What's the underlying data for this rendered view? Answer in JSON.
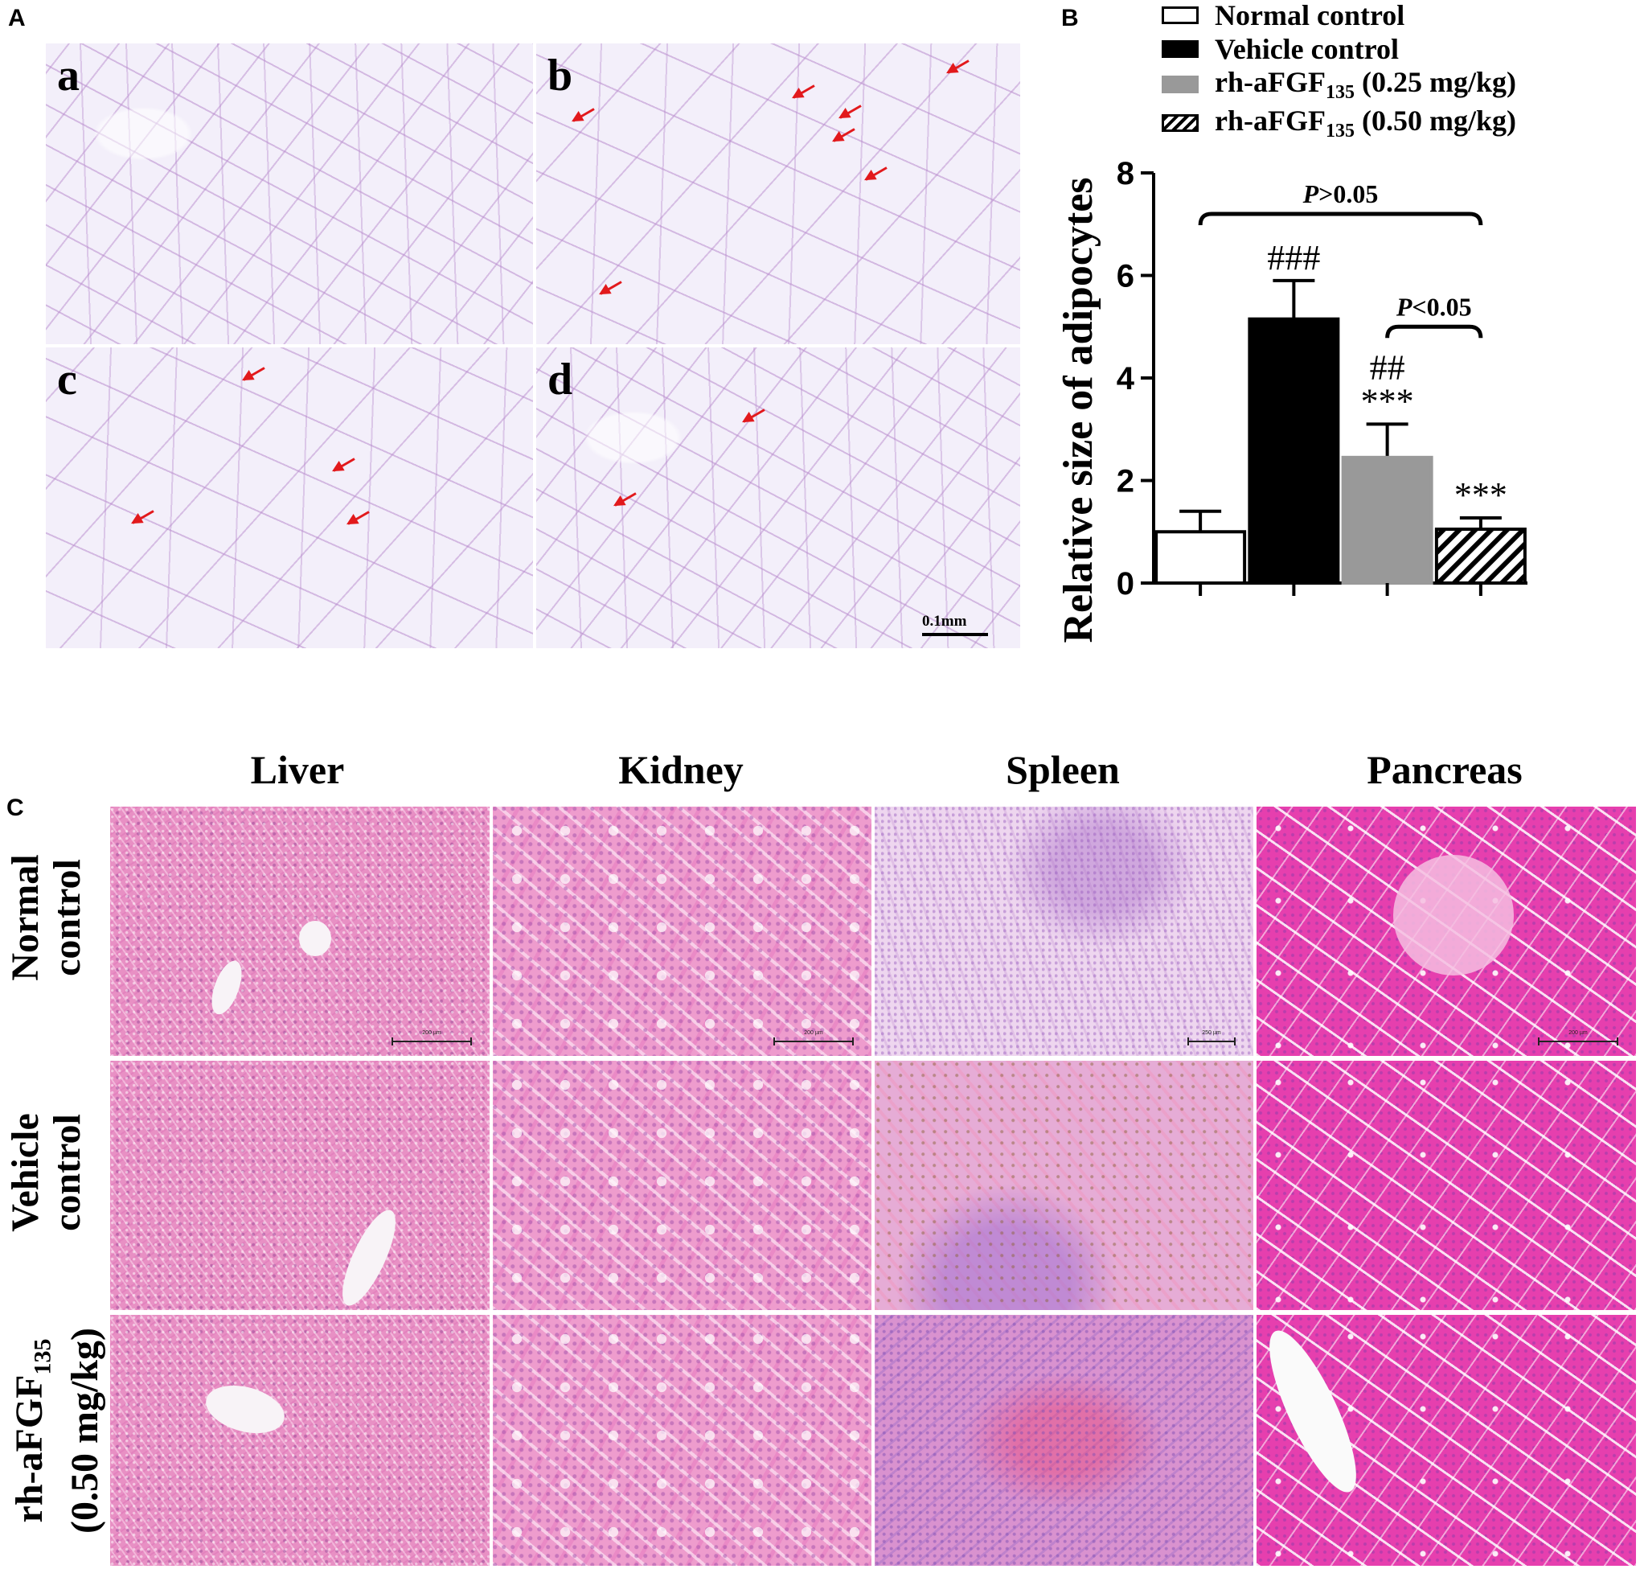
{
  "panel_letters": {
    "a": "A",
    "b": "B",
    "c": "C"
  },
  "panel_a": {
    "sub_labels": [
      "a",
      "b",
      "c",
      "d"
    ],
    "scale_bar": "0.1mm"
  },
  "chart_data": {
    "type": "bar",
    "ylabel": "Relative size of adipocytes",
    "ylim": [
      0,
      8
    ],
    "yticks": [
      "0",
      "2",
      "4",
      "6",
      "8"
    ],
    "categories": [
      "Normal control",
      "Vehicle control",
      "rh-aFGF135 (0.25 mg/kg)",
      "rh-aFGF135 (0.50 mg/kg)"
    ],
    "values": [
      1.0,
      5.15,
      2.45,
      1.05
    ],
    "errors": [
      0.4,
      0.75,
      0.65,
      0.22
    ],
    "bar_labels": [
      {
        "top": "",
        "bottom": ""
      },
      {
        "top": "",
        "bottom": "###"
      },
      {
        "top": "##",
        "bottom": "***"
      },
      {
        "top": "",
        "bottom": "***"
      }
    ],
    "comparisons": [
      {
        "text_italic": "P",
        "text": ">0.05",
        "from": 0,
        "to": 3,
        "y": 7.2
      },
      {
        "text_italic": "P",
        "text": "<0.05",
        "from": 2,
        "to": 3,
        "y": 5.0
      }
    ],
    "legend": [
      {
        "main": "Normal control",
        "sub": "",
        "tail": "",
        "fill": "#ffffff",
        "pattern": "none"
      },
      {
        "main": "Vehicle control",
        "sub": "",
        "tail": "",
        "fill": "#000000",
        "pattern": "none"
      },
      {
        "main": "rh-aFGF",
        "sub": "135",
        "tail": " (0.25 mg/kg)",
        "fill": "#999999",
        "pattern": "none"
      },
      {
        "main": "rh-aFGF",
        "sub": "135",
        "tail": " (0.50 mg/kg)",
        "fill": "#ffffff",
        "pattern": "hatch"
      }
    ],
    "legend_position": "top"
  },
  "panel_c": {
    "columns": [
      "Liver",
      "Kidney",
      "Spleen",
      "Pancreas"
    ],
    "rows": [
      {
        "line1": "Normal",
        "line2": "control",
        "sub": "",
        "tail": ""
      },
      {
        "line1": "Vehicle",
        "line2": "control",
        "sub": "",
        "tail": ""
      },
      {
        "line1": "rh-aFGF",
        "sub": "135",
        "line2": "(0.50 mg/kg)",
        "tail": ""
      }
    ],
    "scale_labels": [
      "200 µm",
      "200 µm",
      "250 µm",
      "200 µm"
    ]
  }
}
